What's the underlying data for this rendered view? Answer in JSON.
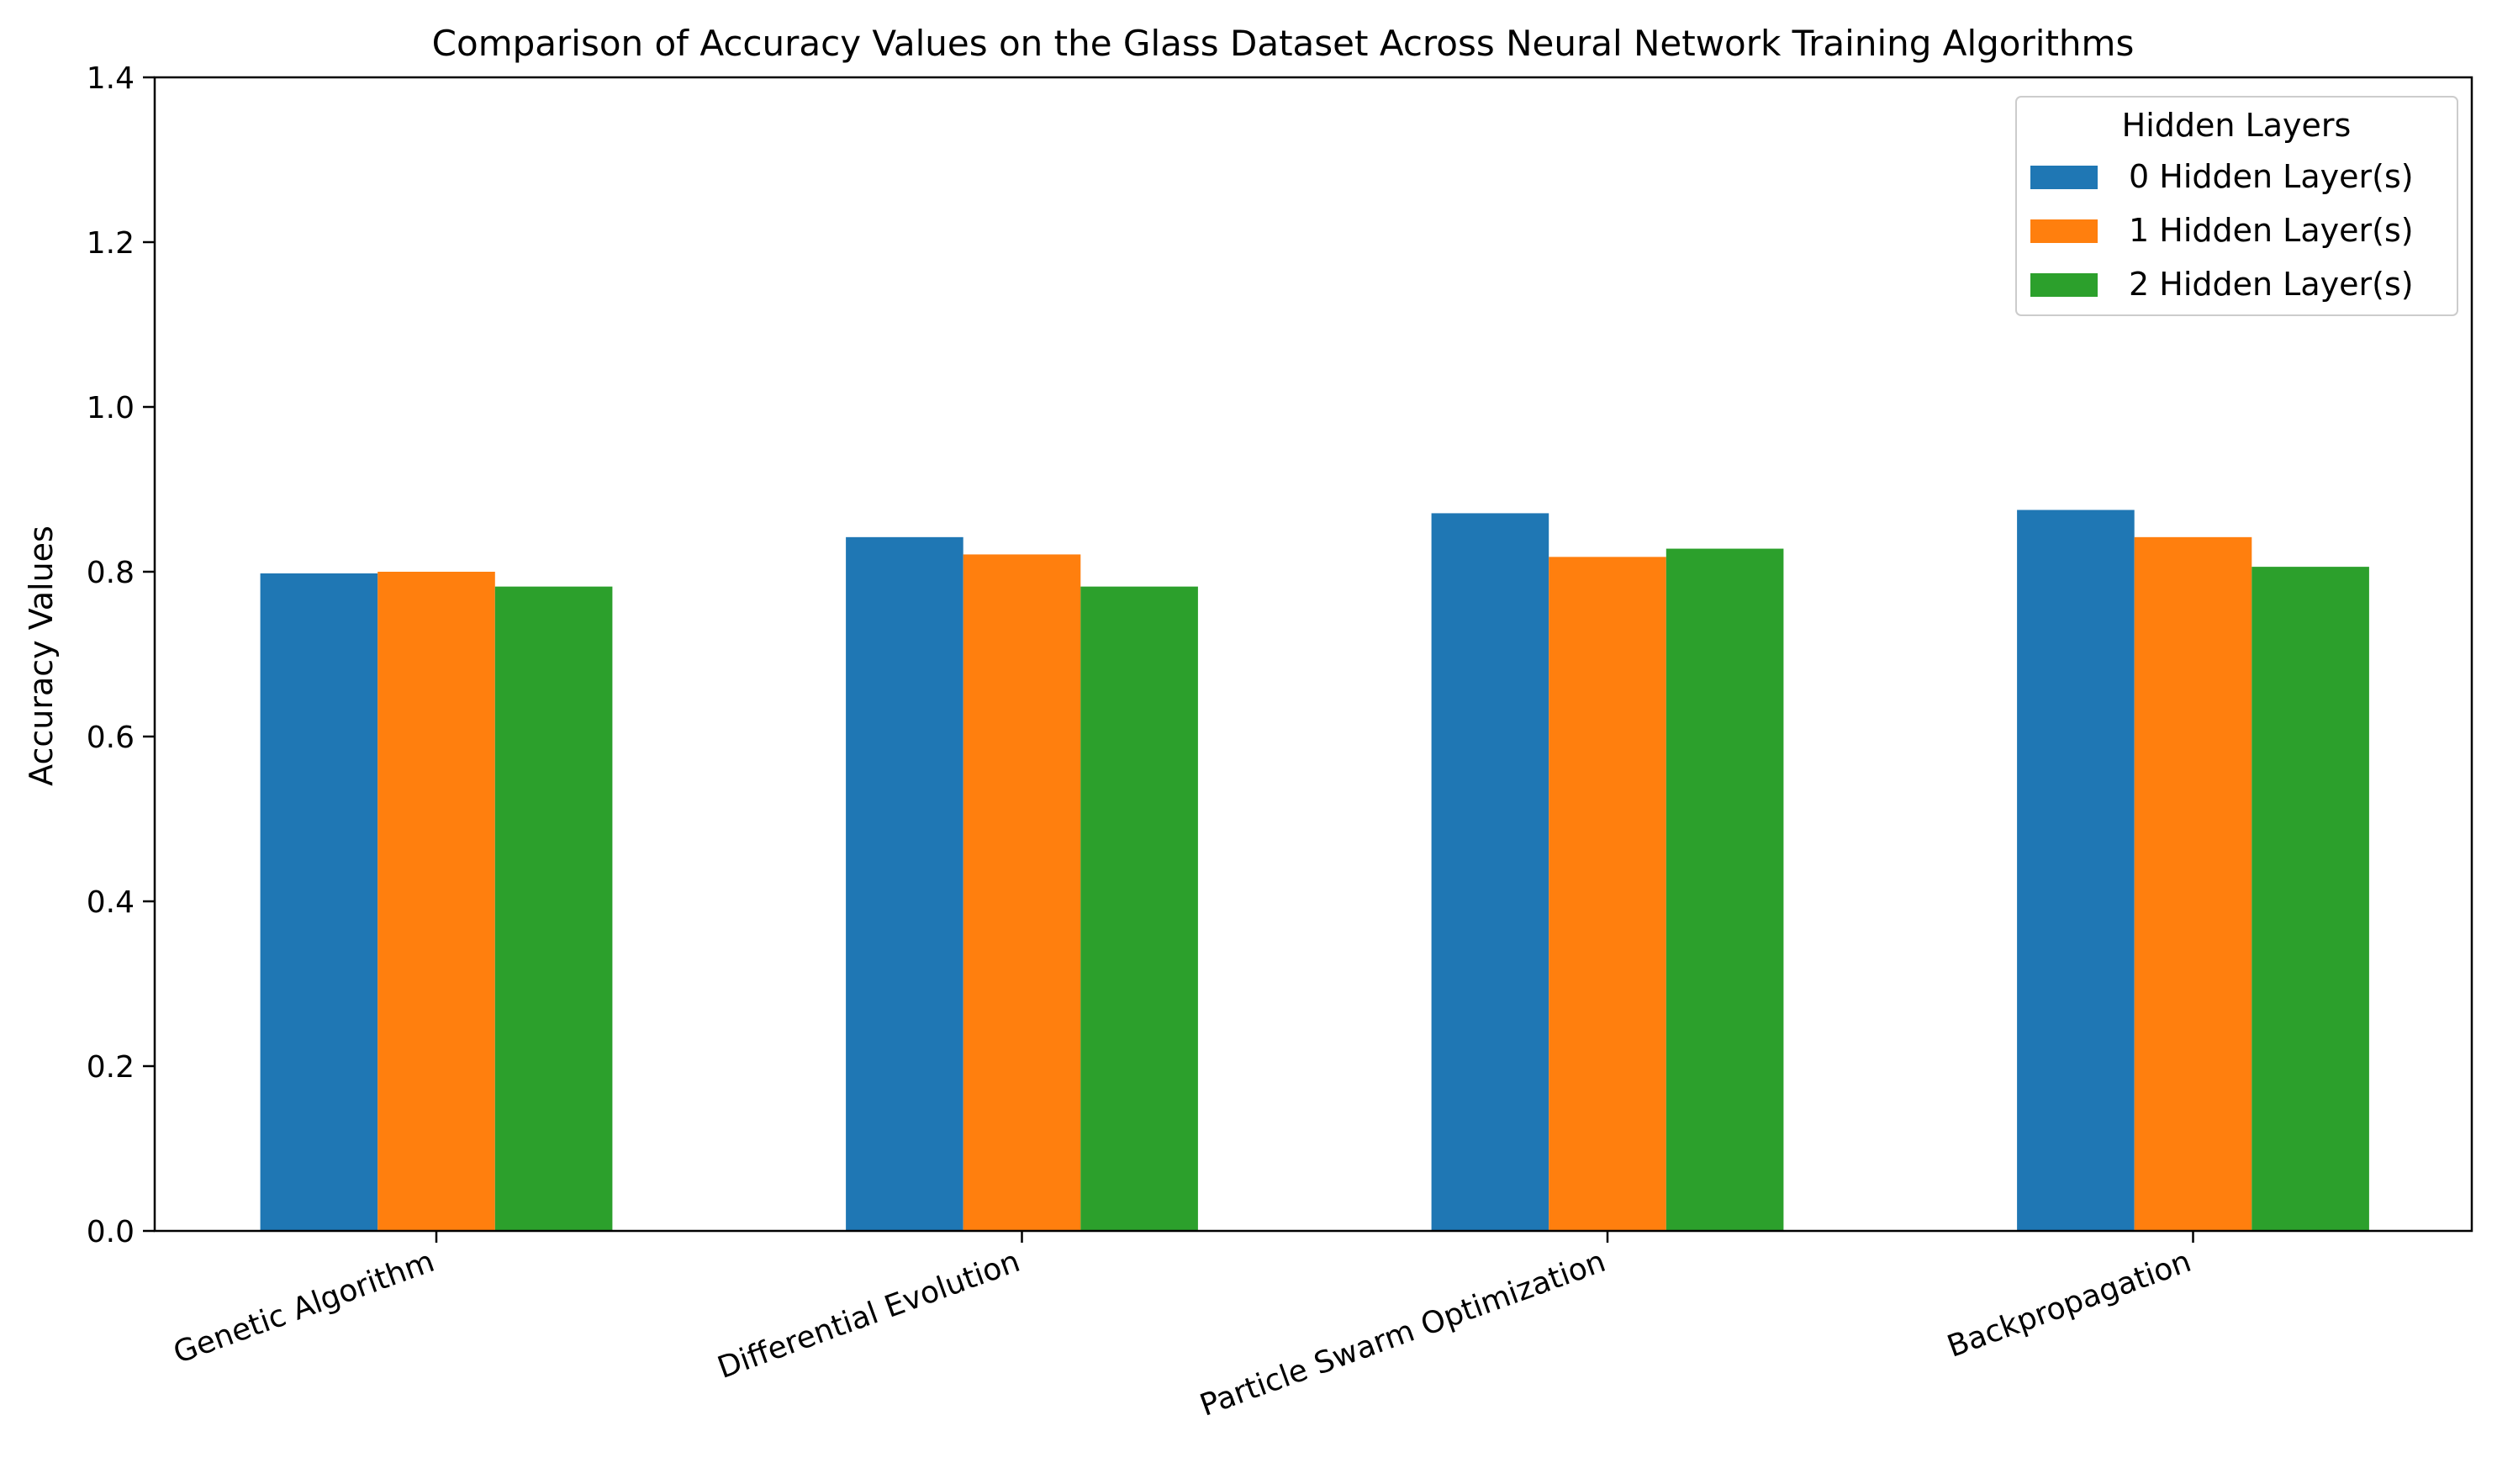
{
  "chart_data": {
    "type": "bar",
    "title": "Comparison of Accuracy Values on the Glass Dataset Across Neural Network Training Algorithms",
    "xlabel": "",
    "ylabel": "Accuracy Values",
    "ylim": [
      0,
      1.4
    ],
    "yticks": [
      "0.0",
      "0.2",
      "0.4",
      "0.6",
      "0.8",
      "1.0",
      "1.2",
      "1.4"
    ],
    "categories": [
      "Genetic Algorithm",
      "Differential Evolution",
      "Particle Swarm Optimization",
      "Backpropagation"
    ],
    "series": [
      {
        "name": "0 Hidden Layer(s)",
        "color": "#1f77b4",
        "values": [
          0.798,
          0.842,
          0.871,
          0.875
        ]
      },
      {
        "name": "1 Hidden Layer(s)",
        "color": "#ff7f0e",
        "values": [
          0.8,
          0.821,
          0.818,
          0.842
        ]
      },
      {
        "name": "2 Hidden Layer(s)",
        "color": "#2ca02c",
        "values": [
          0.782,
          0.782,
          0.828,
          0.806
        ]
      }
    ],
    "legend": {
      "title": "Hidden Layers",
      "placement": "top-right"
    },
    "grid": false
  }
}
